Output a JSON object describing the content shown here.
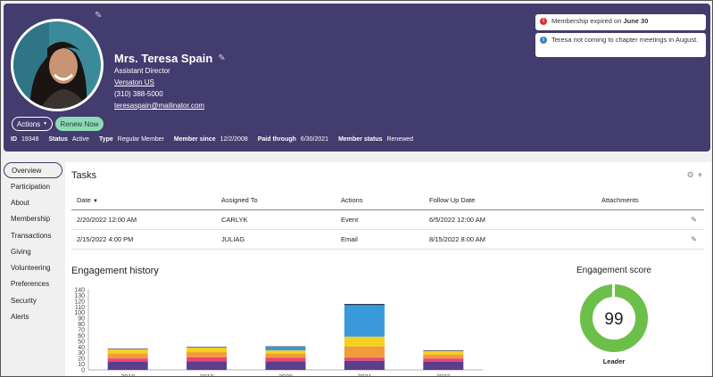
{
  "profile": {
    "name": "Mrs. Teresa Spain",
    "title": "Assistant Director",
    "organization": "Versaton US",
    "phone": "(310) 388-5000",
    "email": "teresaspain@mailinator.com"
  },
  "buttons": {
    "actions": "Actions",
    "renew": "Renew Now"
  },
  "meta": [
    {
      "key": "ID",
      "value": "19348"
    },
    {
      "key": "Status",
      "value": "Active"
    },
    {
      "key": "Type",
      "value": "Regular Member"
    },
    {
      "key": "Member since",
      "value": "12/2/2008"
    },
    {
      "key": "Paid through",
      "value": "6/30/2021"
    },
    {
      "key": "Member status",
      "value": "Renewed"
    }
  ],
  "alerts": {
    "expired_prefix": "Membership expired on ",
    "expired_date": "June 30",
    "note": "Teresa not coming to chapter meetings in August."
  },
  "sidebar": [
    "Overview",
    "Participation",
    "About",
    "Membership",
    "Transactions",
    "Giving",
    "Volunteering",
    "Preferences",
    "Security",
    "Alerts"
  ],
  "tasks": {
    "title": "Tasks",
    "headers": [
      "Date",
      "Assigned To",
      "Actions",
      "Follow Up Date",
      "Attachments"
    ],
    "rows": [
      [
        "2/20/2022 12:00 AM",
        "CARLYK",
        "Event",
        "6/5/2022 12:00 AM",
        ""
      ],
      [
        "2/15/2022 4:00 PM",
        "JULIAG",
        "Email",
        "8/15/2022 8:00 AM",
        ""
      ]
    ]
  },
  "engagement": {
    "title": "Engagement history",
    "score_title": "Engagement score",
    "score": "99",
    "score_label": "Leader"
  },
  "colors": {
    "header_bg": "#433c6e",
    "renew_bg": "#8fd9b6",
    "alert_red": "#d93030",
    "alert_blue": "#3b82c4",
    "score_green": "#6cc04a"
  },
  "chart_data": {
    "type": "bar",
    "stacked": true,
    "categories": [
      "2018",
      "2019",
      "2020",
      "2021",
      "2022"
    ],
    "ylim": [
      0,
      140
    ],
    "yticks": [
      0,
      10,
      20,
      30,
      40,
      50,
      60,
      70,
      80,
      90,
      100,
      110,
      120,
      130,
      140
    ],
    "grid": false,
    "series": [
      {
        "color": "#5b3f8c",
        "values": [
          14,
          15,
          15,
          16,
          14
        ]
      },
      {
        "color": "#e8457a",
        "values": [
          6,
          7,
          6,
          5,
          6
        ]
      },
      {
        "color": "#f29b3a",
        "values": [
          8,
          9,
          7,
          20,
          7
        ]
      },
      {
        "color": "#f5d020",
        "values": [
          8,
          8,
          6,
          17,
          6
        ]
      },
      {
        "color": "#3a9ad9",
        "values": [
          0,
          0,
          6,
          55,
          0
        ]
      },
      {
        "color": "#1f2a44",
        "values": [
          1,
          1,
          1,
          2,
          1
        ]
      }
    ]
  }
}
